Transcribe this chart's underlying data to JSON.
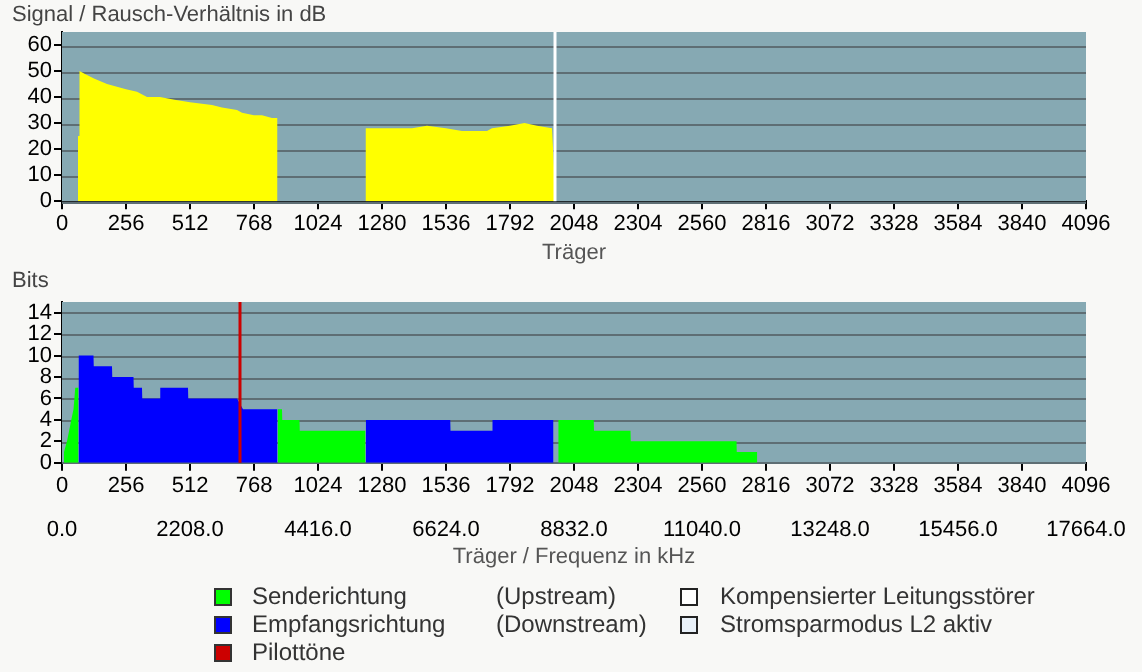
{
  "chart_data": [
    {
      "type": "area",
      "ylabel": "Signal / Rausch-Verhältnis in dB",
      "xlabel": "Träger",
      "xlim": [
        0,
        4096
      ],
      "xticks": [
        0,
        256,
        512,
        768,
        1024,
        1280,
        1536,
        1792,
        2048,
        2304,
        2560,
        2816,
        3072,
        3328,
        3584,
        3840,
        4096
      ],
      "ylim": [
        0,
        65
      ],
      "yticks": [
        0,
        10,
        20,
        30,
        40,
        50,
        60
      ],
      "grid": "y",
      "legend": false,
      "series": [
        {
          "color": "#ffff00",
          "x": [
            64,
            70,
            90,
            130,
            180,
            256,
            300,
            340,
            392,
            450,
            512,
            600,
            640,
            700,
            720,
            768,
            800,
            840,
            862,
            1000,
            1214,
            1280,
            1400,
            1460,
            1536,
            1600,
            1700,
            1720,
            1792,
            1850,
            1900,
            1960,
            1968
          ],
          "values": [
            25,
            50,
            49,
            47,
            45,
            43,
            42,
            40,
            40,
            39,
            38,
            37,
            36,
            35,
            34,
            33,
            33,
            32,
            32,
            null,
            28,
            28,
            28,
            29,
            28,
            27,
            27,
            28,
            29,
            30,
            29,
            28,
            13
          ]
        }
      ],
      "ref_lines": [
        {
          "axis": "x",
          "value": 1972,
          "color": "#ffffff"
        }
      ]
    },
    {
      "type": "area",
      "ylabel": "Bits",
      "xlabel": "Träger / Frequenz in kHz",
      "xlim": [
        0,
        4096
      ],
      "xticks": [
        0,
        256,
        512,
        768,
        1024,
        1280,
        1536,
        1792,
        2048,
        2304,
        2560,
        2816,
        3072,
        3328,
        3584,
        3840,
        4096
      ],
      "x2lim": [
        0,
        17664
      ],
      "x2ticks": [
        {
          "value": 0,
          "label": "0.0"
        },
        {
          "value": 2208,
          "label": "2208.0"
        },
        {
          "value": 4416,
          "label": "4416.0"
        },
        {
          "value": 6624,
          "label": "6624.0"
        },
        {
          "value": 8832,
          "label": "8832.0"
        },
        {
          "value": 11040,
          "label": "11040.0"
        },
        {
          "value": 13248,
          "label": "13248.0"
        },
        {
          "value": 15456,
          "label": "15456.0"
        },
        {
          "value": 17664,
          "label": "17664.0"
        }
      ],
      "ylim": [
        0,
        15
      ],
      "yticks": [
        0,
        2,
        4,
        6,
        8,
        10,
        12,
        14
      ],
      "grid": "y",
      "legend": "bottom",
      "series": [
        {
          "name": "Senderichtung",
          "color": "#00ff00",
          "x": [
            8,
            20,
            37,
            46,
            53,
            66,
            760,
            863,
            880,
            881,
            950,
            951,
            1214,
            1600,
            1985,
            2127,
            2128,
            2274,
            2275,
            2698,
            2699,
            2781
          ],
          "values": [
            1,
            2,
            4,
            5,
            7,
            7,
            null,
            5,
            5,
            4,
            4,
            3,
            3,
            null,
            4,
            4,
            3,
            3,
            2,
            2,
            1,
            1
          ]
        },
        {
          "name": "Empfangsrichtung",
          "color": "#0000ff",
          "x": [
            66,
            126,
            127,
            200,
            201,
            286,
            287,
            320,
            321,
            392,
            393,
            504,
            505,
            700,
            724,
            862,
            1000,
            1215,
            1553,
            1554,
            1721,
            1722,
            1966
          ],
          "values": [
            10,
            10,
            9,
            9,
            8,
            8,
            7,
            7,
            6,
            6,
            7,
            7,
            6,
            6,
            5,
            5,
            null,
            4,
            4,
            3,
            3,
            4,
            4
          ]
        }
      ],
      "ref_lines": [
        {
          "axis": "x",
          "value": 712,
          "label": "Pilottöne",
          "color": "#cc0000"
        }
      ],
      "annotations": [
        "(Upstream)",
        "(Downstream)",
        "Kompensierter Leitungsstörer",
        "Stromsparmodus L2 aktiv"
      ]
    }
  ]
}
